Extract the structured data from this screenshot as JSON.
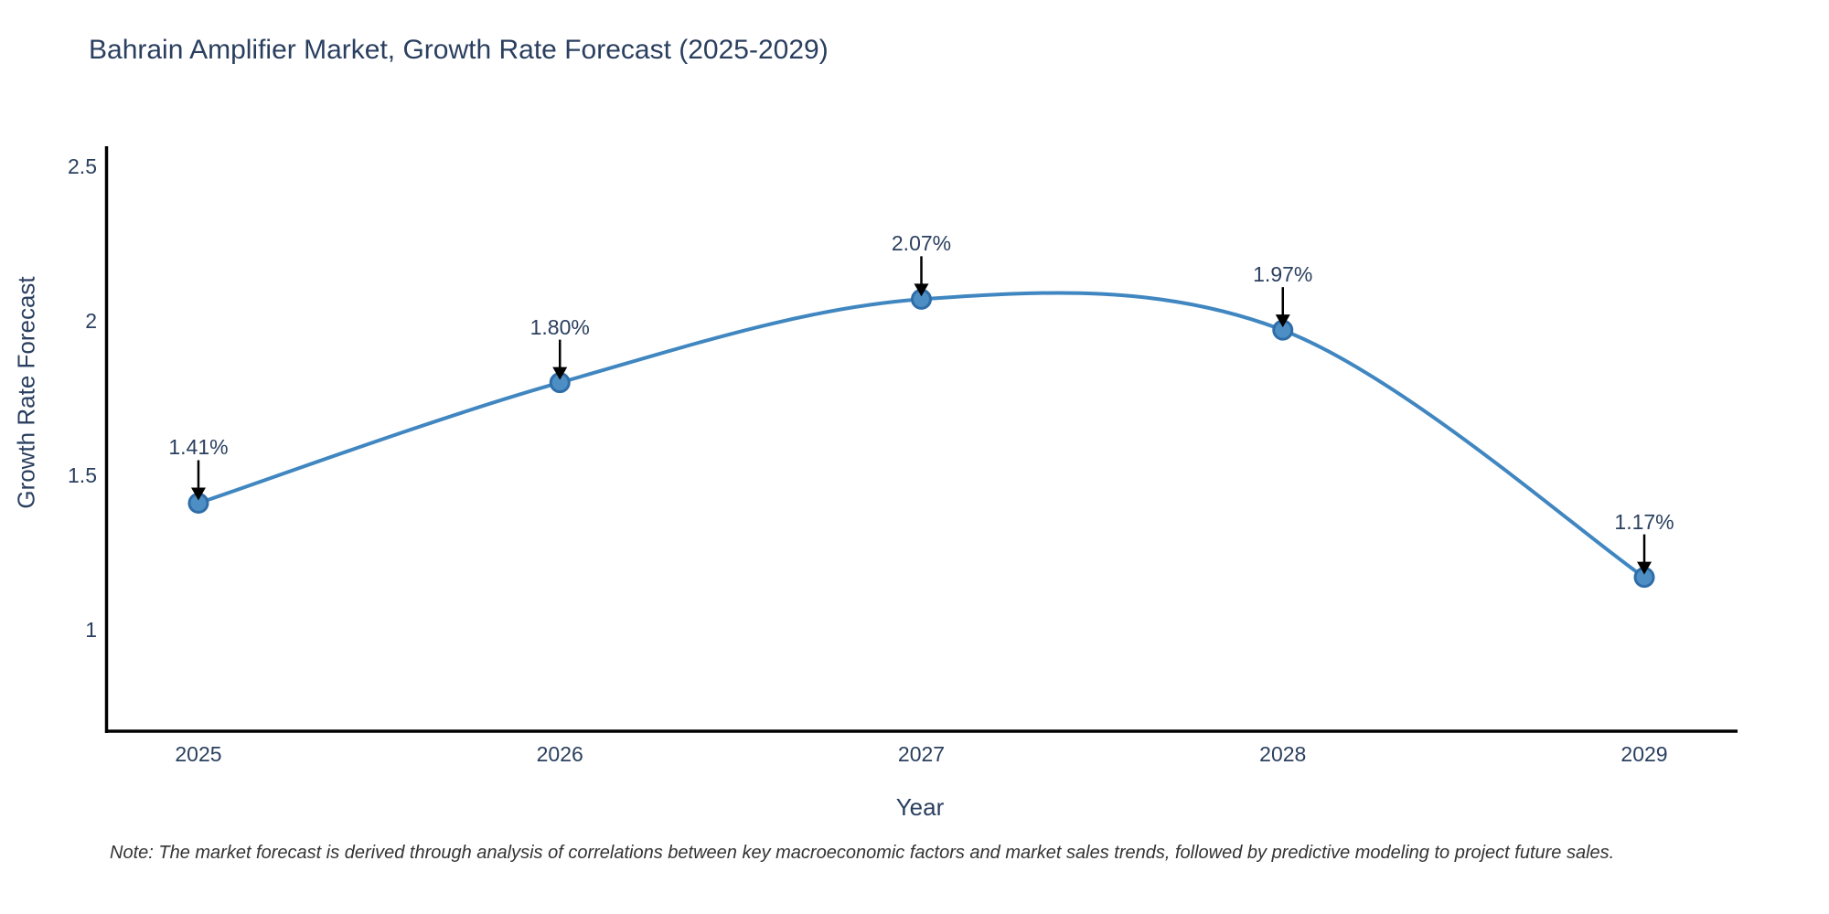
{
  "note": "Note: The market forecast is derived through analysis of correlations between key macroeconomic factors and market sales trends, followed by predictive modeling to project future sales.",
  "chart_data": {
    "type": "line",
    "title": "Bahrain Amplifier Market, Growth Rate Forecast (2025-2029)",
    "xlabel": "Year",
    "ylabel": "Growth Rate Forecast",
    "x": [
      2025,
      2026,
      2027,
      2028,
      2029
    ],
    "values": [
      1.41,
      1.8,
      2.07,
      1.97,
      1.17
    ],
    "point_labels": [
      "1.41%",
      "1.80%",
      "2.07%",
      "1.97%",
      "1.17%"
    ],
    "x_tick_labels": [
      "2025",
      "2026",
      "2027",
      "2028",
      "2029"
    ],
    "y_ticks": [
      1,
      1.5,
      2,
      2.5
    ],
    "y_tick_labels": [
      "1",
      "1.5",
      "2",
      "2.5"
    ],
    "xlim": [
      2024.742,
      2029.258
    ],
    "ylim": [
      0.672,
      2.565
    ],
    "line_shape": "spline",
    "grid": false,
    "legend": "none",
    "annotation_style": "down-arrow",
    "colors": {
      "line": "#4086c0",
      "marker_fill": "#4d8fc4",
      "marker_edge": "#2f6da8",
      "text": "#2a3f5f",
      "arrow": "#000000",
      "axis": "#000000",
      "note_text": "#333333",
      "background": "#ffffff"
    }
  }
}
